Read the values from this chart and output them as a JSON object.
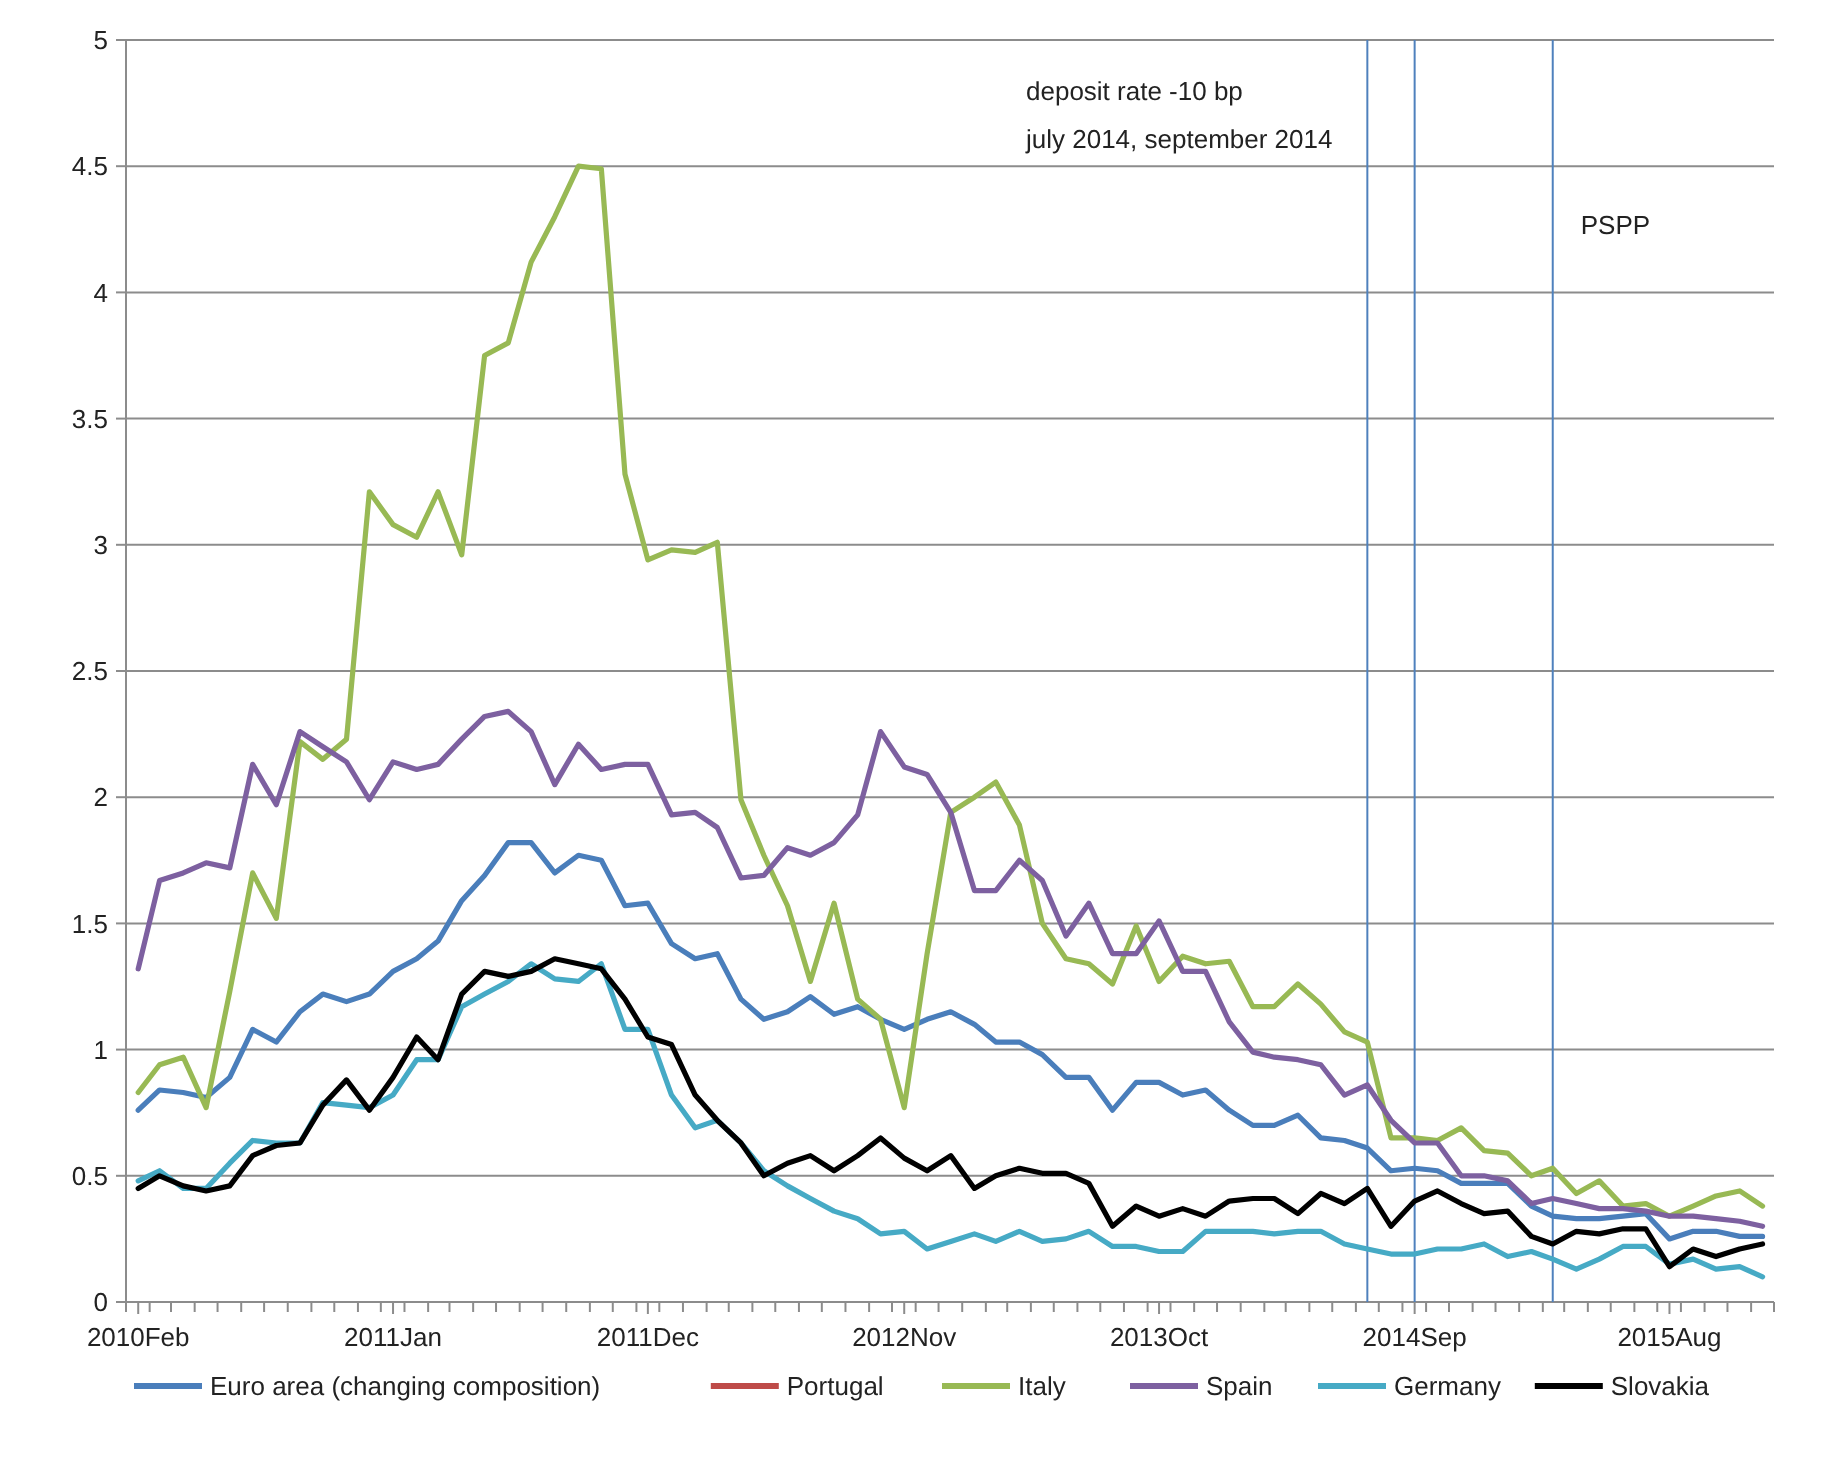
{
  "chart_data": {
    "type": "line",
    "x": [
      "2010-02",
      "2010-03",
      "2010-04",
      "2010-05",
      "2010-06",
      "2010-07",
      "2010-08",
      "2010-09",
      "2010-10",
      "2010-11",
      "2010-12",
      "2011-01",
      "2011-02",
      "2011-03",
      "2011-04",
      "2011-05",
      "2011-06",
      "2011-07",
      "2011-08",
      "2011-09",
      "2011-10",
      "2011-11",
      "2011-12",
      "2012-01",
      "2012-02",
      "2012-03",
      "2012-04",
      "2012-05",
      "2012-06",
      "2012-07",
      "2012-08",
      "2012-09",
      "2012-10",
      "2012-11",
      "2012-12",
      "2013-01",
      "2013-02",
      "2013-03",
      "2013-04",
      "2013-05",
      "2013-06",
      "2013-07",
      "2013-08",
      "2013-09",
      "2013-10",
      "2013-11",
      "2013-12",
      "2014-01",
      "2014-02",
      "2014-03",
      "2014-04",
      "2014-05",
      "2014-06",
      "2014-07",
      "2014-08",
      "2014-09",
      "2014-10",
      "2014-11",
      "2014-12",
      "2015-01",
      "2015-02",
      "2015-03",
      "2015-04",
      "2015-05",
      "2015-06",
      "2015-07",
      "2015-08",
      "2015-09",
      "2015-10",
      "2015-11",
      "2015-12"
    ],
    "series": [
      {
        "name": "Euro area (changing composition)",
        "color": "#4a7ebb",
        "values": [
          0.76,
          0.84,
          0.83,
          0.81,
          0.89,
          1.08,
          1.03,
          1.15,
          1.22,
          1.19,
          1.22,
          1.31,
          1.36,
          1.43,
          1.59,
          1.69,
          1.82,
          1.82,
          1.7,
          1.77,
          1.75,
          1.57,
          1.58,
          1.42,
          1.36,
          1.38,
          1.2,
          1.12,
          1.15,
          1.21,
          1.14,
          1.17,
          1.12,
          1.08,
          1.12,
          1.15,
          1.1,
          1.03,
          1.03,
          0.98,
          0.89,
          0.89,
          0.76,
          0.87,
          0.87,
          0.82,
          0.84,
          0.76,
          0.7,
          0.7,
          0.74,
          0.65,
          0.64,
          0.61,
          0.52,
          0.53,
          0.52,
          0.47,
          0.47,
          0.47,
          0.38,
          0.34,
          0.33,
          0.33,
          0.34,
          0.35,
          0.25,
          0.28,
          0.28,
          0.26,
          0.26
        ]
      },
      {
        "name": "Portugal",
        "color": "#be4b48",
        "values": [
          null,
          null,
          null,
          null,
          null,
          null,
          null,
          null,
          null,
          null,
          null,
          null,
          null,
          null,
          null,
          null,
          null,
          null,
          null,
          null,
          null,
          null,
          null,
          null,
          null,
          null,
          null,
          null,
          null,
          null,
          null,
          null,
          null,
          null,
          null,
          null,
          null,
          null,
          null,
          null,
          null,
          null,
          null,
          null,
          null,
          null,
          null,
          null,
          null,
          null,
          null,
          null,
          null,
          null,
          null,
          null,
          null,
          null,
          null,
          null,
          null,
          null,
          null,
          null,
          null,
          null,
          null,
          null,
          null,
          null,
          null
        ]
      },
      {
        "name": "Italy",
        "color": "#98b954",
        "values": [
          0.83,
          0.94,
          0.97,
          0.77,
          1.23,
          1.7,
          1.52,
          2.22,
          2.15,
          2.23,
          3.21,
          3.08,
          3.03,
          3.21,
          2.96,
          3.75,
          3.8,
          4.12,
          4.3,
          4.5,
          4.49,
          3.28,
          2.94,
          2.98,
          2.97,
          3.01,
          1.99,
          1.77,
          1.57,
          1.27,
          1.58,
          1.2,
          1.12,
          0.77,
          1.38,
          1.94,
          2.0,
          2.06,
          1.89,
          1.5,
          1.36,
          1.34,
          1.26,
          1.49,
          1.27,
          1.37,
          1.34,
          1.35,
          1.17,
          1.17,
          1.26,
          1.18,
          1.07,
          1.03,
          0.65,
          0.65,
          0.64,
          0.69,
          0.6,
          0.59,
          0.5,
          0.53,
          0.43,
          0.48,
          0.38,
          0.39,
          0.34,
          0.38,
          0.42,
          0.44,
          0.38
        ]
      },
      {
        "name": "Spain",
        "color": "#7d60a0",
        "values": [
          1.32,
          1.67,
          1.7,
          1.74,
          1.72,
          2.13,
          1.97,
          2.26,
          2.2,
          2.14,
          1.99,
          2.14,
          2.11,
          2.13,
          2.23,
          2.32,
          2.34,
          2.26,
          2.05,
          2.21,
          2.11,
          2.13,
          2.13,
          1.93,
          1.94,
          1.88,
          1.68,
          1.69,
          1.8,
          1.77,
          1.82,
          1.93,
          2.26,
          2.12,
          2.09,
          1.94,
          1.63,
          1.63,
          1.75,
          1.67,
          1.45,
          1.58,
          1.38,
          1.38,
          1.51,
          1.31,
          1.31,
          1.11,
          0.99,
          0.97,
          0.96,
          0.94,
          0.82,
          0.86,
          0.72,
          0.63,
          0.63,
          0.5,
          0.5,
          0.48,
          0.39,
          0.41,
          0.39,
          0.37,
          0.37,
          0.36,
          0.34,
          0.34,
          0.33,
          0.32,
          0.3
        ]
      },
      {
        "name": "Germany",
        "color": "#46aac5",
        "values": [
          0.48,
          0.52,
          0.45,
          0.45,
          0.55,
          0.64,
          0.63,
          0.63,
          0.79,
          0.78,
          0.77,
          0.82,
          0.96,
          0.96,
          1.17,
          1.22,
          1.27,
          1.34,
          1.28,
          1.27,
          1.34,
          1.08,
          1.08,
          0.82,
          0.69,
          0.72,
          0.63,
          0.52,
          0.46,
          0.41,
          0.36,
          0.33,
          0.27,
          0.28,
          0.21,
          0.24,
          0.27,
          0.24,
          0.28,
          0.24,
          0.25,
          0.28,
          0.22,
          0.22,
          0.2,
          0.2,
          0.28,
          0.28,
          0.28,
          0.27,
          0.28,
          0.28,
          0.23,
          0.21,
          0.19,
          0.19,
          0.21,
          0.21,
          0.23,
          0.18,
          0.2,
          0.17,
          0.13,
          0.17,
          0.22,
          0.22,
          0.15,
          0.17,
          0.13,
          0.14,
          0.1
        ]
      },
      {
        "name": "Slovakia",
        "color": "#000000",
        "values": [
          0.45,
          0.5,
          0.46,
          0.44,
          0.46,
          0.58,
          0.62,
          0.63,
          0.78,
          0.88,
          0.76,
          0.89,
          1.05,
          0.96,
          1.22,
          1.31,
          1.29,
          1.31,
          1.36,
          1.34,
          1.32,
          1.2,
          1.05,
          1.02,
          0.82,
          0.72,
          0.63,
          0.5,
          0.55,
          0.58,
          0.52,
          0.58,
          0.65,
          0.57,
          0.52,
          0.58,
          0.45,
          0.5,
          0.53,
          0.51,
          0.51,
          0.47,
          0.3,
          0.38,
          0.34,
          0.37,
          0.34,
          0.4,
          0.41,
          0.41,
          0.35,
          0.43,
          0.39,
          0.45,
          0.3,
          0.4,
          0.44,
          0.39,
          0.35,
          0.36,
          0.26,
          0.23,
          0.28,
          0.27,
          0.29,
          0.29,
          0.14,
          0.21,
          0.18,
          0.21,
          0.23
        ]
      }
    ],
    "xlim": [
      "2010-01-16",
      "2015-12-16"
    ],
    "xticks": [
      {
        "value": "2010-02",
        "label": "2010Feb"
      },
      {
        "value": "2011-01",
        "label": "2011Jan"
      },
      {
        "value": "2011-12",
        "label": "2011Dec"
      },
      {
        "value": "2012-11",
        "label": "2012Nov"
      },
      {
        "value": "2013-10",
        "label": "2013Oct"
      },
      {
        "value": "2014-09",
        "label": "2014Sep"
      },
      {
        "value": "2015-08",
        "label": "2015Aug"
      }
    ],
    "ylim": [
      0,
      5
    ],
    "yticks": [
      0,
      0.5,
      1,
      1.5,
      2,
      2.5,
      3,
      3.5,
      4,
      4.5,
      5
    ],
    "grid": "y",
    "legend": "bottom",
    "line_style": "solid",
    "marker": "none",
    "ref_lines": [
      {
        "axis": "x",
        "value": "2014-07",
        "label": null,
        "color": "#4f81bd"
      },
      {
        "axis": "x",
        "value": "2014-09",
        "label": null,
        "color": "#4f81bd"
      },
      {
        "axis": "x",
        "value": "2015-03",
        "label": "PSPP",
        "color": "#4f81bd"
      }
    ],
    "annotations": [
      "deposit rate -10 bp",
      "july 2014, september 2014"
    ]
  }
}
